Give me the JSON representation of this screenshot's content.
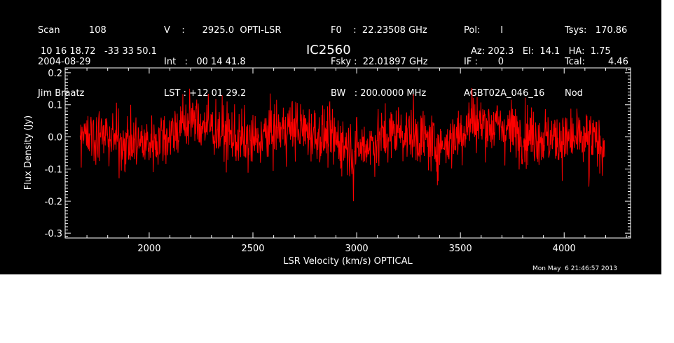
{
  "header": {
    "col1": [
      "Scan          108",
      "2004-08-29",
      "Jim Braatz"
    ],
    "col2": [
      "V    :      2925.0  OPTI-LSR",
      "Int   :   00 14 41.8",
      "LST : +12 01 29.2"
    ],
    "col3": [
      "F0    :  22.23508 GHz",
      "Fsky :  22.01897 GHz",
      "BW   : 200.0000 MHz"
    ],
    "col4": [
      "Pol:       I",
      "IF :       0",
      "AGBT02A_046_16"
    ],
    "col5": [
      "Tsys:   170.86",
      "Tcal:        4.46",
      "Nod"
    ],
    "coords": "10 16 18.72   -33 33 50.1",
    "pointing": "Az: 202.3   El:  14.1   HA:  1.75"
  },
  "timestamp": "Mon May  6 21:46:57 2013",
  "colors": {
    "background": "#000000",
    "axes": "#ffffff",
    "series": "#ff0000"
  },
  "chart_data": {
    "type": "line",
    "title": "IC2560",
    "xlabel": "LSR Velocity (km/s) OPTICAL",
    "ylabel": "Flux Density (Jy)",
    "xlim": [
      1595,
      4320
    ],
    "ylim": [
      -0.315,
      0.215
    ],
    "xticks": [
      2000,
      2500,
      3000,
      3500,
      4000
    ],
    "xtick_labels": [
      "2000",
      "2500",
      "3000",
      "3500",
      "4000"
    ],
    "yticks": [
      -0.3,
      -0.2,
      -0.1,
      0.0,
      0.1,
      0.2
    ],
    "ytick_labels": [
      "-0.3",
      "-0.2",
      "-0.1",
      "0.0",
      "0.1",
      "0.2"
    ],
    "grid": false,
    "series": [
      {
        "x_range": [
          1667,
          4195
        ],
        "baseline_velocity": [
          1667,
          1700,
          1800,
          1900,
          2000,
          2100,
          2200,
          2300,
          2400,
          2500,
          2600,
          2700,
          2800,
          2900,
          3000,
          3100,
          3200,
          3300,
          3400,
          3500,
          3550,
          3600,
          3700,
          3800,
          3900,
          4000,
          4100,
          4195
        ],
        "baseline_flux": [
          0.0,
          0.01,
          0.0,
          -0.02,
          -0.02,
          0.01,
          0.05,
          0.03,
          0.0,
          -0.02,
          0.02,
          0.03,
          0.01,
          -0.01,
          -0.04,
          -0.01,
          0.02,
          0.0,
          -0.03,
          0.01,
          0.05,
          0.04,
          0.03,
          0.01,
          0.0,
          -0.01,
          -0.01,
          -0.02
        ],
        "noise_rms": 0.045,
        "peak_flux": 0.155,
        "min_flux": -0.2
      }
    ]
  }
}
